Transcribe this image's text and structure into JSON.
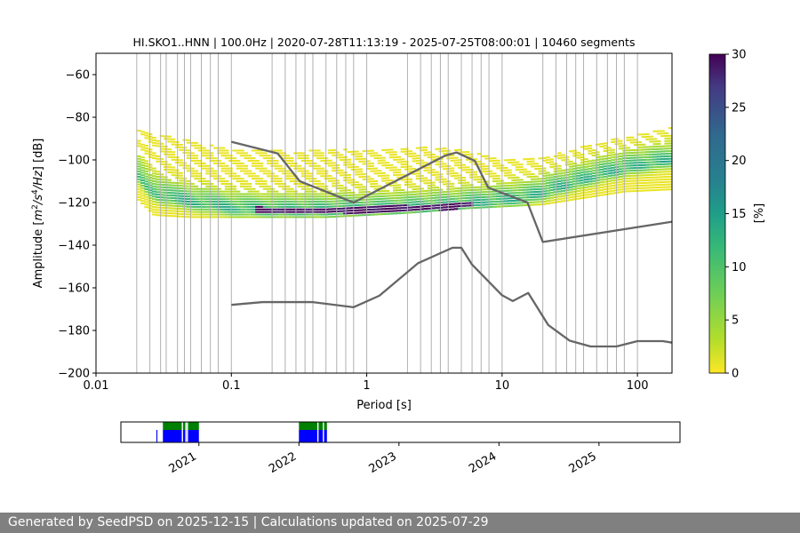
{
  "chart_data": [
    {
      "type": "heatmap",
      "title": "HI.SKO1..HNN | 100.0Hz | 2020-07-28T11:13:19 - 2025-07-25T08:00:01 | 10460 segments",
      "xlabel": "Period [s]",
      "ylabel_parts": [
        "Amplitude [",
        "m",
        "2",
        "/",
        "s",
        "4",
        "/",
        "Hz",
        "] [dB]"
      ],
      "x_scale": "log",
      "xlim": [
        0.01,
        180
      ],
      "ylim": [
        -200,
        -50
      ],
      "x_ticks": [
        {
          "value": 0.01,
          "label": "0.01"
        },
        {
          "value": 0.1,
          "label": "0.1"
        },
        {
          "value": 1,
          "label": "1"
        },
        {
          "value": 10,
          "label": "10"
        },
        {
          "value": 100,
          "label": "100"
        }
      ],
      "y_ticks": [
        {
          "value": -60,
          "label": "−60"
        },
        {
          "value": -80,
          "label": "−80"
        },
        {
          "value": -100,
          "label": "−100"
        },
        {
          "value": -120,
          "label": "−120"
        },
        {
          "value": -140,
          "label": "−140"
        },
        {
          "value": -160,
          "label": "−160"
        },
        {
          "value": -180,
          "label": "−180"
        },
        {
          "value": -200,
          "label": "−200"
        }
      ],
      "grid": true,
      "colormap": "viridis_r",
      "colorbar": {
        "label": "[%]",
        "range": [
          0,
          30
        ],
        "ticks": [
          {
            "value": 0,
            "label": "0"
          },
          {
            "value": 5,
            "label": "5"
          },
          {
            "value": 10,
            "label": "10"
          },
          {
            "value": 15,
            "label": "15"
          },
          {
            "value": 20,
            "label": "20"
          },
          {
            "value": 25,
            "label": "25"
          },
          {
            "value": 30,
            "label": "30"
          }
        ]
      },
      "density": {
        "period_range": [
          0.02,
          180
        ],
        "mode_db": [
          [
            0.02,
            -106
          ],
          [
            0.025,
            -114
          ],
          [
            0.03,
            -117
          ],
          [
            0.05,
            -120
          ],
          [
            0.1,
            -123
          ],
          [
            0.2,
            -124
          ],
          [
            0.5,
            -124
          ],
          [
            1,
            -123.5
          ],
          [
            2,
            -123
          ],
          [
            4,
            -122
          ],
          [
            8,
            -120
          ],
          [
            15,
            -118
          ],
          [
            30,
            -112
          ],
          [
            60,
            -106
          ],
          [
            100,
            -103
          ],
          [
            180,
            -100
          ]
        ],
        "lower_db": [
          [
            0.02,
            -118
          ],
          [
            0.027,
            -126
          ],
          [
            0.05,
            -127
          ],
          [
            0.5,
            -127
          ],
          [
            2,
            -125
          ],
          [
            5,
            -123
          ],
          [
            10,
            -122
          ],
          [
            20,
            -121
          ],
          [
            40,
            -118
          ],
          [
            80,
            -115
          ],
          [
            180,
            -114
          ]
        ],
        "upper_db": [
          [
            0.02,
            -86
          ],
          [
            0.1,
            -95
          ],
          [
            0.3,
            -96
          ],
          [
            1,
            -95
          ],
          [
            3,
            -94
          ],
          [
            6,
            -96
          ],
          [
            10,
            -100
          ],
          [
            20,
            -99
          ],
          [
            50,
            -92
          ],
          [
            100,
            -88
          ],
          [
            180,
            -85
          ]
        ],
        "peak_percent": 30
      },
      "series": [
        {
          "name": "",
          "color": "#666666",
          "points": [
            [
              0.1,
              -91.5
            ],
            [
              0.22,
              -97
            ],
            [
              0.32,
              -110
            ],
            [
              0.8,
              -120
            ],
            [
              3.8,
              -98
            ],
            [
              4.6,
              -96.5
            ],
            [
              6.3,
              -100.5
            ],
            [
              7.9,
              -113
            ],
            [
              15.4,
              -120
            ],
            [
              20,
              -138.5
            ],
            [
              180,
              -129
            ]
          ]
        },
        {
          "name": "",
          "color": "#666666",
          "points": [
            [
              0.1,
              -168
            ],
            [
              0.17,
              -166.7
            ],
            [
              0.4,
              -166.7
            ],
            [
              0.8,
              -169.1
            ],
            [
              1.24,
              -163.7
            ],
            [
              2.4,
              -148.4
            ],
            [
              4.3,
              -141.2
            ],
            [
              5.0,
              -141.2
            ],
            [
              6.0,
              -149.1
            ],
            [
              10,
              -163.5
            ],
            [
              12,
              -166.2
            ],
            [
              15.6,
              -162.4
            ],
            [
              21.9,
              -177.4
            ],
            [
              31.6,
              -184.8
            ],
            [
              45,
              -187.5
            ],
            [
              70,
              -187.5
            ],
            [
              100,
              -185
            ],
            [
              154,
              -185
            ],
            [
              180,
              -185.7
            ]
          ]
        }
      ],
      "vertical_lines": [
        0.02,
        0.025,
        0.03,
        0.033,
        0.04,
        0.045,
        0.05,
        0.06,
        0.07,
        0.08,
        0.1,
        0.2,
        0.25,
        0.3,
        0.35,
        0.4,
        0.5,
        0.6,
        0.7,
        0.8,
        1,
        2,
        2.5,
        3,
        3.5,
        4,
        5,
        6,
        7,
        8,
        10,
        20,
        25,
        30,
        35,
        40,
        50,
        60,
        70,
        80,
        100
      ]
    },
    {
      "type": "timeline",
      "x_ticks": [
        {
          "value": 2021,
          "label": "2021"
        },
        {
          "value": 2022,
          "label": "2022"
        },
        {
          "value": 2023,
          "label": "2023"
        },
        {
          "value": 2024,
          "label": "2024"
        },
        {
          "value": 2025,
          "label": "2025"
        }
      ],
      "xlim": [
        2020.22,
        2025.81
      ],
      "coverage_color": "#0000ff",
      "processed_color": "#008000",
      "coverage_ranges": [
        [
          2020.575,
          2020.585
        ],
        [
          2020.64,
          2021.0
        ],
        [
          2022.0,
          2022.28
        ]
      ],
      "processed_ranges": [
        [
          2020.64,
          2021.0
        ],
        [
          2022.0,
          2022.28
        ]
      ],
      "gaps": [
        2020.835,
        2020.87,
        2020.885,
        2022.19,
        2022.245
      ]
    }
  ],
  "footer": {
    "text": "Generated by SeedPSD on 2025-12-15 | Calculations updated on 2025-07-29"
  }
}
